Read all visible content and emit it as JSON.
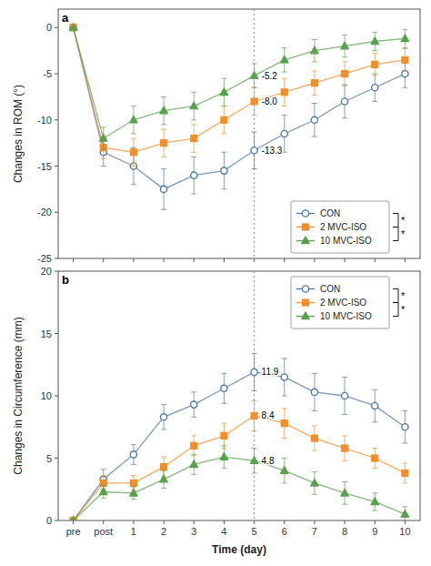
{
  "chart_data": [
    {
      "type": "line",
      "title": "a",
      "categories": [
        "pre",
        "post",
        "1",
        "2",
        "3",
        "4",
        "5",
        "6",
        "7",
        "8",
        "9",
        "10"
      ],
      "series": [
        {
          "name": "CON",
          "color": "#4e79a7",
          "marker": "open-circle",
          "values": [
            0,
            -13.5,
            -15.0,
            -17.5,
            -16.0,
            -15.5,
            -13.3,
            -11.5,
            -10.0,
            -8.0,
            -6.5,
            -5.0
          ],
          "errors": [
            0,
            1.5,
            2.0,
            2.2,
            2.0,
            2.0,
            2.0,
            2.0,
            1.8,
            1.8,
            1.5,
            1.5
          ]
        },
        {
          "name": "2 MVC-ISO",
          "color": "#f28e2b",
          "marker": "square",
          "values": [
            0,
            -13.0,
            -13.5,
            -12.5,
            -12.0,
            -10.0,
            -8.0,
            -7.0,
            -6.0,
            -5.0,
            -4.0,
            -3.5
          ],
          "errors": [
            0,
            1.2,
            1.5,
            1.5,
            1.5,
            1.5,
            1.5,
            1.5,
            1.3,
            1.3,
            1.2,
            1.2
          ]
        },
        {
          "name": "10 MVC-ISO",
          "color": "#59a14f",
          "marker": "triangle",
          "values": [
            0,
            -12.0,
            -10.0,
            -9.0,
            -8.5,
            -7.0,
            -5.2,
            -3.5,
            -2.5,
            -2.0,
            -1.5,
            -1.2
          ],
          "errors": [
            0,
            1.2,
            1.5,
            1.5,
            1.5,
            1.5,
            1.3,
            1.3,
            1.2,
            1.2,
            1.0,
            1.0
          ]
        }
      ],
      "ylabel": "Changes in ROM (°)",
      "ylim": [
        -25,
        2
      ],
      "yticks": [
        0,
        -5,
        -10,
        -15,
        -20,
        -25
      ],
      "vline": "5",
      "annotations": [
        {
          "x": "5",
          "value": -13.3,
          "label": "-13.3"
        },
        {
          "x": "5",
          "value": -8.0,
          "label": "-8.0"
        },
        {
          "x": "5",
          "value": -5.2,
          "label": "-5.2"
        }
      ],
      "legend": "lower right",
      "significance": [
        {
          "between": [
            "CON",
            "2 MVC-ISO"
          ],
          "label": "*"
        },
        {
          "between": [
            "2 MVC-ISO",
            "10 MVC-ISO"
          ],
          "label": "*"
        }
      ],
      "grid": false,
      "tick_labels": "y"
    },
    {
      "type": "line",
      "title": "b",
      "categories": [
        "pre",
        "post",
        "1",
        "2",
        "3",
        "4",
        "5",
        "6",
        "7",
        "8",
        "9",
        "10"
      ],
      "series": [
        {
          "name": "CON",
          "color": "#4e79a7",
          "marker": "open-circle",
          "values": [
            0,
            3.3,
            5.3,
            8.3,
            9.3,
            10.6,
            11.9,
            11.5,
            10.3,
            10.0,
            9.2,
            7.5
          ],
          "errors": [
            0,
            0.8,
            0.8,
            1.0,
            1.0,
            1.2,
            1.5,
            1.5,
            1.5,
            1.5,
            1.3,
            1.3
          ]
        },
        {
          "name": "2 MVC-ISO",
          "color": "#f28e2b",
          "marker": "square",
          "values": [
            0,
            3.0,
            3.0,
            4.3,
            6.0,
            6.8,
            8.4,
            7.8,
            6.6,
            5.8,
            5.0,
            3.8
          ],
          "errors": [
            0,
            0.6,
            0.6,
            0.8,
            0.8,
            1.0,
            1.2,
            1.2,
            1.0,
            1.0,
            0.8,
            0.8
          ]
        },
        {
          "name": "10 MVC-ISO",
          "color": "#59a14f",
          "marker": "triangle",
          "values": [
            0,
            2.3,
            2.2,
            3.3,
            4.5,
            5.1,
            4.8,
            4.0,
            3.0,
            2.2,
            1.5,
            0.5
          ],
          "errors": [
            0,
            0.5,
            0.5,
            0.7,
            0.8,
            0.9,
            1.0,
            1.0,
            0.9,
            0.9,
            0.7,
            0.6
          ]
        }
      ],
      "xlabel": "Time (day)",
      "ylabel": "Changes in Circumference (mm)",
      "ylim": [
        0,
        20
      ],
      "yticks": [
        0,
        5,
        10,
        15,
        20
      ],
      "vline": "5",
      "annotations": [
        {
          "x": "5",
          "value": 11.9,
          "label": "11.9"
        },
        {
          "x": "5",
          "value": 8.4,
          "label": "8.4"
        },
        {
          "x": "5",
          "value": 4.8,
          "label": "4.8"
        }
      ],
      "legend": "upper right",
      "significance": [
        {
          "between": [
            "CON",
            "2 MVC-ISO"
          ],
          "label": "*"
        },
        {
          "between": [
            "2 MVC-ISO",
            "10 MVC-ISO"
          ],
          "label": "*"
        }
      ],
      "grid": false
    }
  ]
}
